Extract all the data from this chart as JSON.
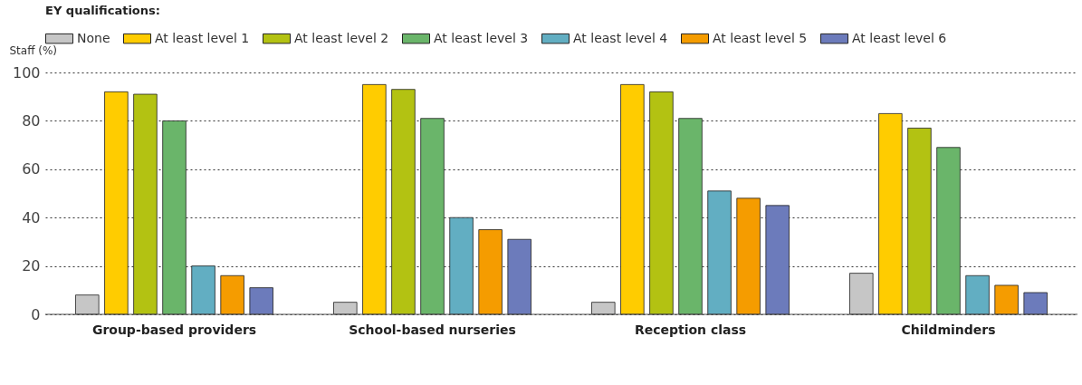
{
  "chart_data": {
    "type": "bar",
    "legend_title": "EY qualifications:",
    "ylabel": "Staff (%)",
    "categories": [
      "Group-based providers",
      "School-based nurseries",
      "Reception class",
      "Childminders"
    ],
    "series": [
      {
        "name": "None",
        "color": "#c6c6c6",
        "values": [
          8,
          5,
          5,
          17
        ]
      },
      {
        "name": "At least level 1",
        "color": "#ffcc00",
        "values": [
          92,
          95,
          95,
          83
        ]
      },
      {
        "name": "At least level 2",
        "color": "#b3c212",
        "values": [
          91,
          93,
          92,
          77
        ]
      },
      {
        "name": "At least level 3",
        "color": "#6ab56a",
        "values": [
          80,
          81,
          81,
          69
        ]
      },
      {
        "name": "At least level 4",
        "color": "#62aec2",
        "values": [
          20,
          40,
          51,
          16
        ]
      },
      {
        "name": "At least level 5",
        "color": "#f59c00",
        "values": [
          16,
          35,
          48,
          12
        ]
      },
      {
        "name": "At least level 6",
        "color": "#6c7bbb",
        "values": [
          11,
          31,
          45,
          9
        ]
      }
    ],
    "ylim": [
      0,
      100
    ],
    "yticks": [
      0,
      20,
      40,
      60,
      80,
      100
    ],
    "grid": "y",
    "legend": "top left"
  }
}
